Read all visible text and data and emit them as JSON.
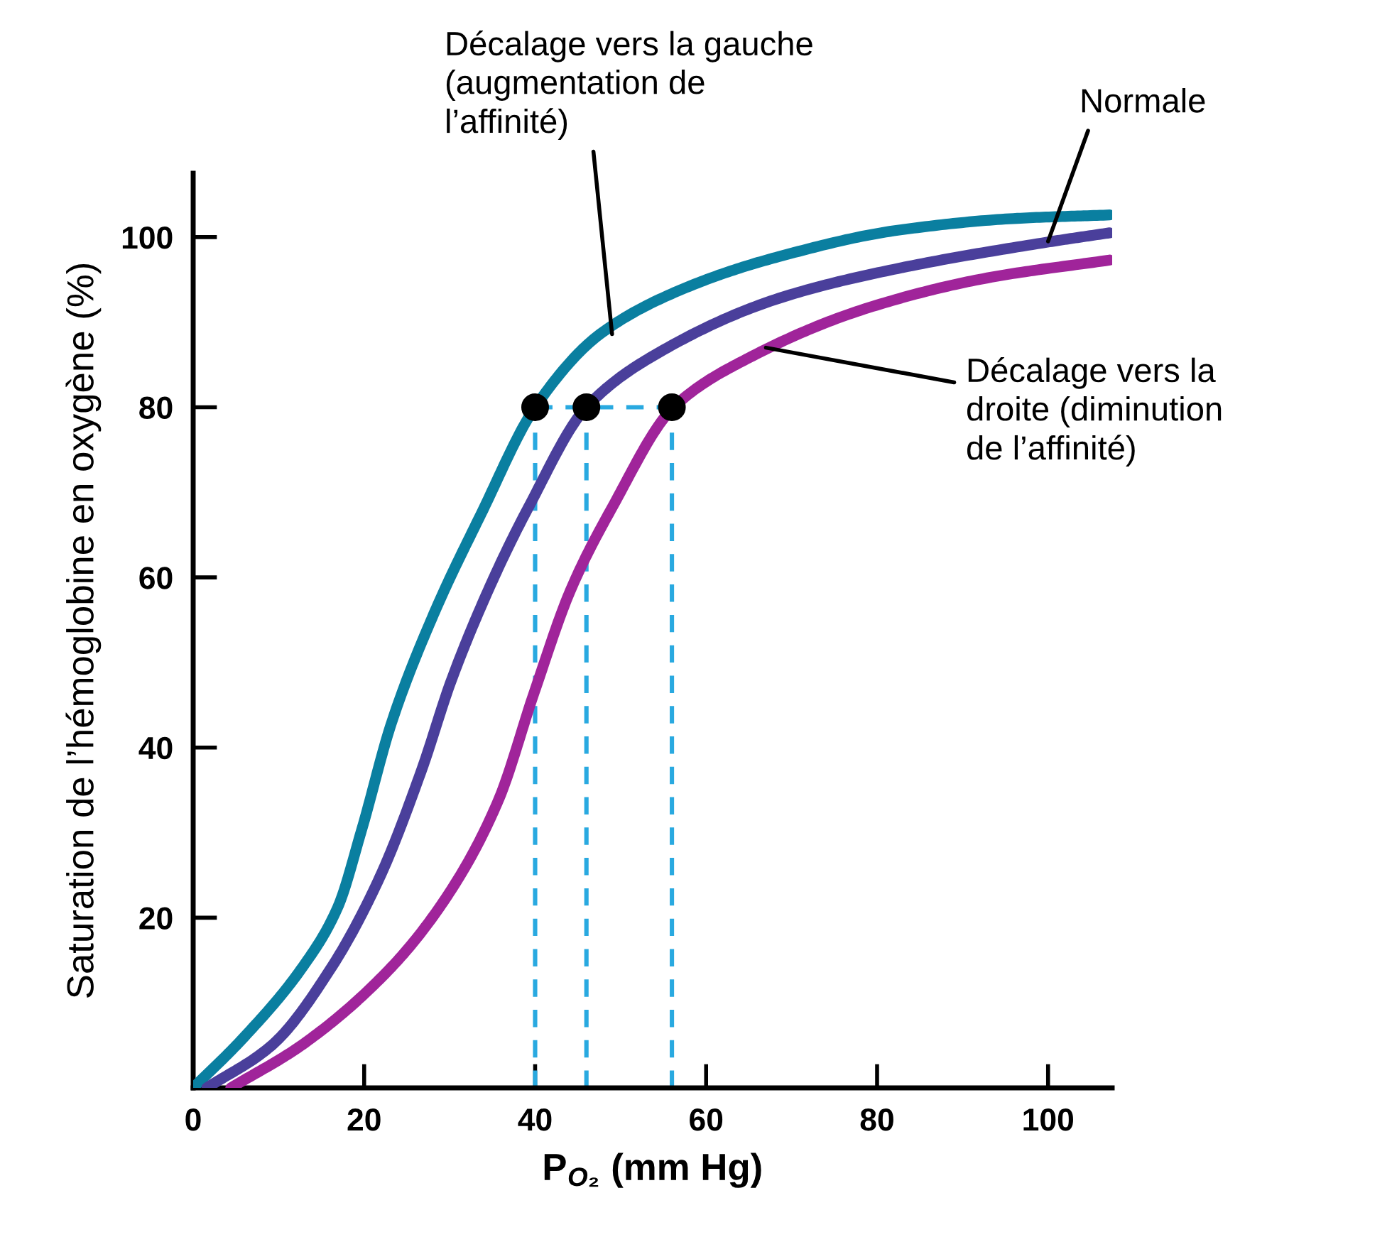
{
  "chart_data": {
    "type": "line",
    "xlabel": "P$_{O₂}$ (mm Hg)",
    "ylabel": "Saturation de l’hémoglobine en oxygène (%)",
    "xlim": [
      0,
      107.5
    ],
    "ylim": [
      0,
      107.5
    ],
    "xticks": [
      0,
      20,
      40,
      60,
      80,
      100
    ],
    "yticks": [
      20,
      40,
      60,
      80,
      100
    ],
    "grid": false,
    "legend": false,
    "marker": "none",
    "line_style": "solid",
    "series": [
      {
        "color": "#0a7fa0",
        "x": [
          0,
          5.8,
          12.8,
          16.9,
          19.7,
          23.2,
          28.1,
          33.7,
          40,
          47.6,
          58,
          68.5,
          82.4,
          96.4,
          107.2
        ],
        "values": [
          0,
          5.8,
          14.2,
          21.2,
          30.3,
          42.9,
          55.6,
          67.5,
          80,
          88.6,
          94.2,
          97.7,
          100.8,
          102.2,
          102.6
        ]
      },
      {
        "color": "#4a3f9b",
        "x": [
          1.6,
          9.3,
          16.2,
          21.8,
          26.7,
          30.2,
          35.1,
          39.2,
          46,
          54.6,
          68.5,
          82.4,
          99.9,
          107.2
        ],
        "values": [
          0,
          5.1,
          14.2,
          24.7,
          37.3,
          47.9,
          59.8,
          68.2,
          80,
          86.5,
          92.8,
          96.3,
          99.4,
          100.5
        ]
      },
      {
        "color": "#a0249a",
        "x": [
          4.4,
          12.8,
          23.2,
          30.2,
          35.7,
          39.9,
          44.1,
          49,
          56.2,
          65,
          79,
          92.9,
          107.2
        ],
        "values": [
          0,
          5.1,
          14.2,
          23.3,
          33.8,
          46.5,
          58.4,
          68.2,
          80,
          85.8,
          91.7,
          95.2,
          97.3
        ]
      },
      {
        "color": "#29a9e0",
        "line_style": "dashed",
        "x": [
          40,
          40
        ],
        "values": [
          0,
          80
        ]
      },
      {
        "color": "#29a9e0",
        "line_style": "dashed",
        "x": [
          46,
          46
        ],
        "values": [
          0,
          80
        ]
      },
      {
        "color": "#29a9e0",
        "line_style": "dashed",
        "x": [
          56,
          56
        ],
        "values": [
          0,
          80
        ]
      },
      {
        "color": "#29a9e0",
        "line_style": "dashed",
        "x": [
          40,
          56
        ],
        "values": [
          80,
          80
        ]
      },
      {
        "type": "scatter",
        "color": "#000000",
        "marker": "circle",
        "x": [
          40,
          46,
          56
        ],
        "values": [
          80,
          80,
          80
        ]
      }
    ],
    "annotations": [
      {
        "text": "Décalage vers la gauche\n(augmentation de\nl’affinité)",
        "x": 49,
        "y": 88.6
      },
      {
        "text": "Normale",
        "x": 100,
        "y": 99.5
      },
      {
        "text": "Décalage vers la\ndroite (diminution\nde l’affinité)",
        "x": 67,
        "y": 87
      }
    ]
  }
}
